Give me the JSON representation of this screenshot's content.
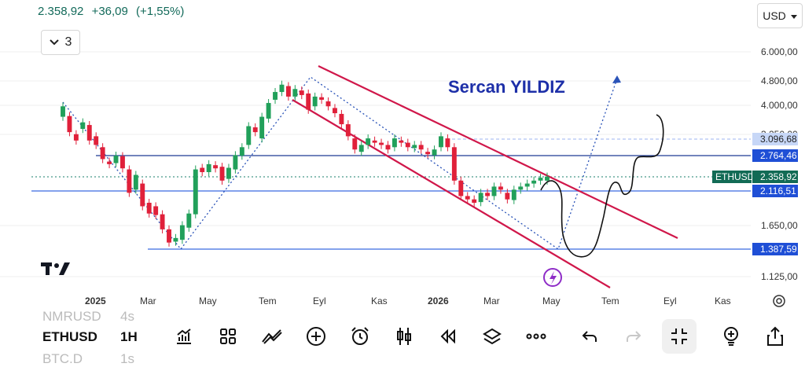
{
  "header": {
    "price": "2.358,92",
    "change": "+36,09",
    "change_pct": "(+1,55%)",
    "interval": "3",
    "currency": "USD"
  },
  "watermark": "Sercan YILDIZ",
  "chart_data": {
    "type": "candlestick",
    "symbol": "ETHUSD",
    "y_scale": "log",
    "y_ticks": [
      "6.000,00",
      "4.800,00",
      "4.000,00",
      "3.250,00",
      "1.650,00",
      "1.125,00"
    ],
    "x_ticks": [
      "2025",
      "Mar",
      "May",
      "Tem",
      "Eyl",
      "Kas",
      "2026",
      "Mar",
      "May",
      "Tem",
      "Eyl",
      "Kas"
    ],
    "price_labels": [
      {
        "text": "3.096,68",
        "kind": "light"
      },
      {
        "text": "2.764,46",
        "kind": "blue"
      },
      {
        "text": "ETHUSD",
        "kind": "green"
      },
      {
        "text": "2.358,92",
        "kind": "green"
      },
      {
        "text": "2.116,51",
        "kind": "blue"
      },
      {
        "text": "1.387,59",
        "kind": "blue"
      }
    ],
    "candles": [
      [
        3700,
        4000
      ],
      [
        3720,
        3300
      ],
      [
        3250,
        3100
      ],
      [
        3380,
        3550
      ],
      [
        3480,
        3100
      ],
      [
        3200,
        3000
      ],
      [
        2950,
        2700
      ],
      [
        2650,
        2600
      ],
      [
        2620,
        2770
      ],
      [
        2760,
        2520
      ],
      [
        2500,
        2100
      ],
      [
        2150,
        2400
      ],
      [
        2250,
        1900
      ],
      [
        1950,
        1800
      ],
      [
        1900,
        1780
      ],
      [
        1790,
        1600
      ],
      [
        1600,
        1450
      ],
      [
        1460,
        1500
      ],
      [
        1480,
        1650
      ],
      [
        1620,
        1800
      ],
      [
        1790,
        2500
      ],
      [
        2530,
        2450
      ],
      [
        2450,
        2600
      ],
      [
        2580,
        2520
      ],
      [
        2550,
        2300
      ],
      [
        2330,
        2530
      ],
      [
        2500,
        2780
      ],
      [
        2770,
        2950
      ],
      [
        3000,
        3450
      ],
      [
        3420,
        3300
      ],
      [
        3150,
        3700
      ],
      [
        3650,
        4100
      ],
      [
        4200,
        4450
      ],
      [
        4450,
        4700
      ],
      [
        4650,
        4300
      ],
      [
        4300,
        4550
      ],
      [
        4500,
        4350
      ],
      [
        4400,
        3900
      ],
      [
        4000,
        4300
      ],
      [
        4280,
        4200
      ],
      [
        4150,
        4000
      ],
      [
        3950,
        3800
      ],
      [
        3780,
        3500
      ],
      [
        3500,
        3200
      ],
      [
        3150,
        2900
      ],
      [
        2850,
        3000
      ],
      [
        3000,
        3150
      ],
      [
        3100,
        3050
      ],
      [
        3050,
        3000
      ],
      [
        3000,
        2900
      ],
      [
        2950,
        3150
      ],
      [
        3100,
        3050
      ],
      [
        3050,
        2950
      ],
      [
        2930,
        3000
      ],
      [
        3000,
        2900
      ],
      [
        2850,
        2800
      ],
      [
        2780,
        2900
      ],
      [
        2950,
        3200
      ],
      [
        3150,
        2950
      ],
      [
        2950,
        2300
      ],
      [
        2300,
        2050
      ],
      [
        2050,
        2000
      ],
      [
        2000,
        1950
      ],
      [
        1960,
        2100
      ],
      [
        2100,
        2050
      ],
      [
        2050,
        2200
      ],
      [
        2200,
        2150
      ],
      [
        2100,
        2000
      ],
      [
        1990,
        2150
      ],
      [
        2150,
        2200
      ],
      [
        2200,
        2250
      ],
      [
        2250,
        2300
      ],
      [
        2300,
        2350
      ],
      [
        2300,
        2370
      ]
    ],
    "levels": [
      "2.764,46",
      "2.116,51",
      "1.387,59"
    ]
  },
  "toolbar": {
    "symbol_prev": "NMRUSD",
    "tf_prev": "4s",
    "symbol": "ETHUSD",
    "tf": "1H",
    "symbol_next": "BTC.D",
    "tf_next": "1s"
  }
}
